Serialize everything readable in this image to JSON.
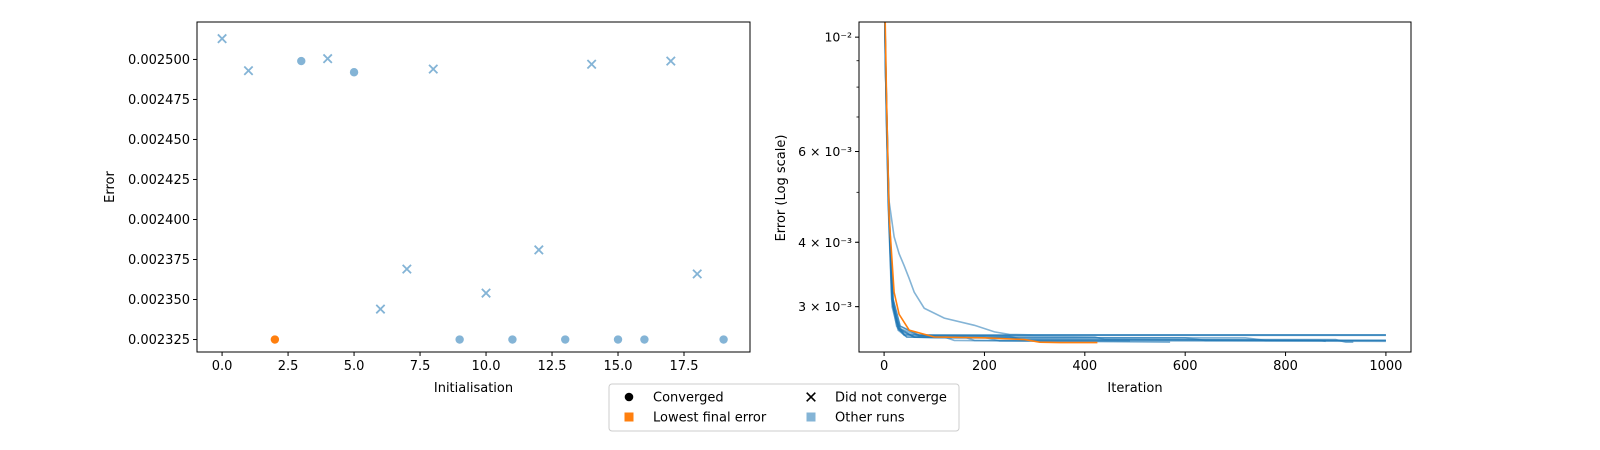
{
  "colors": {
    "highlight": "#ff7f0e",
    "other": "#1f77b4",
    "other_alpha": 0.55,
    "frame": "#000000"
  },
  "chart_data": [
    {
      "type": "scatter",
      "xlabel": "Initialisation",
      "ylabel": "Error",
      "xlim": [
        -0.95,
        20.0
      ],
      "ylim": [
        0.0023172,
        0.0025234
      ],
      "xticks": [
        "0.0",
        "2.5",
        "5.0",
        "7.5",
        "10.0",
        "12.5",
        "15.0",
        "17.5"
      ],
      "yticks": [
        "0.002325",
        "0.002350",
        "0.002375",
        "0.002400",
        "0.002425",
        "0.002450",
        "0.002475",
        "0.002500"
      ],
      "points": [
        {
          "x": 0,
          "y": 0.002513,
          "converged": false,
          "lowest": false
        },
        {
          "x": 1,
          "y": 0.002493,
          "converged": false,
          "lowest": false
        },
        {
          "x": 2,
          "y": 0.002325,
          "converged": true,
          "lowest": true
        },
        {
          "x": 3,
          "y": 0.002499,
          "converged": true,
          "lowest": false
        },
        {
          "x": 4,
          "y": 0.0025005,
          "converged": false,
          "lowest": false
        },
        {
          "x": 5,
          "y": 0.002492,
          "converged": true,
          "lowest": false
        },
        {
          "x": 6,
          "y": 0.002344,
          "converged": false,
          "lowest": false
        },
        {
          "x": 7,
          "y": 0.002369,
          "converged": false,
          "lowest": false
        },
        {
          "x": 8,
          "y": 0.002494,
          "converged": false,
          "lowest": false
        },
        {
          "x": 9,
          "y": 0.002325,
          "converged": true,
          "lowest": false
        },
        {
          "x": 10,
          "y": 0.002354,
          "converged": false,
          "lowest": false
        },
        {
          "x": 11,
          "y": 0.002325,
          "converged": true,
          "lowest": false
        },
        {
          "x": 12,
          "y": 0.002381,
          "converged": false,
          "lowest": false
        },
        {
          "x": 13,
          "y": 0.002325,
          "converged": true,
          "lowest": false
        },
        {
          "x": 14,
          "y": 0.002497,
          "converged": false,
          "lowest": false
        },
        {
          "x": 15,
          "y": 0.002325,
          "converged": true,
          "lowest": false
        },
        {
          "x": 16,
          "y": 0.002325,
          "converged": true,
          "lowest": false
        },
        {
          "x": 17,
          "y": 0.002499,
          "converged": false,
          "lowest": false
        },
        {
          "x": 18,
          "y": 0.002366,
          "converged": false,
          "lowest": false
        },
        {
          "x": 19,
          "y": 0.002325,
          "converged": true,
          "lowest": false
        }
      ]
    },
    {
      "type": "line",
      "xlabel": "Iteration",
      "ylabel": "Error (Log scale)",
      "yscale": "log",
      "xlim": [
        -50,
        1050
      ],
      "ylim": [
        0.00245,
        0.0107
      ],
      "xticks": [
        "0",
        "200",
        "400",
        "600",
        "800",
        "1000"
      ],
      "yticks": [
        {
          "value": 0.003,
          "label": "3 × 10⁻³"
        },
        {
          "value": 0.004,
          "label": "4 × 10⁻³"
        },
        {
          "value": 0.006,
          "label": "6 × 10⁻³"
        },
        {
          "value": 0.01,
          "label": "10⁻²"
        }
      ],
      "series": [
        {
          "highlight": true,
          "points": [
            [
              0,
              0.013
            ],
            [
              2,
              0.011
            ],
            [
              5,
              0.0075
            ],
            [
              10,
              0.0045
            ],
            [
              20,
              0.0032
            ],
            [
              30,
              0.0029
            ],
            [
              50,
              0.0027
            ],
            [
              100,
              0.00262
            ],
            [
              200,
              0.00261
            ],
            [
              280,
              0.00259
            ],
            [
              310,
              0.00256
            ],
            [
              350,
              0.002555
            ],
            [
              425,
              0.002555
            ]
          ]
        },
        {
          "highlight": false,
          "points": [
            [
              0,
              0.013
            ],
            [
              3,
              0.009
            ],
            [
              8,
              0.005
            ],
            [
              15,
              0.0032
            ],
            [
              25,
              0.0028
            ],
            [
              40,
              0.00265
            ],
            [
              100,
              0.002645
            ],
            [
              1000,
              0.002645
            ]
          ]
        },
        {
          "highlight": false,
          "points": [
            [
              0,
              0.013
            ],
            [
              3,
              0.0085
            ],
            [
              8,
              0.0048
            ],
            [
              15,
              0.0031
            ],
            [
              25,
              0.00275
            ],
            [
              40,
              0.00264
            ],
            [
              100,
              0.00264
            ],
            [
              1000,
              0.00264
            ]
          ]
        },
        {
          "highlight": false,
          "points": [
            [
              0,
              0.013
            ],
            [
              3,
              0.0085
            ],
            [
              9,
              0.0047
            ],
            [
              16,
              0.0031
            ],
            [
              28,
              0.00272
            ],
            [
              45,
              0.00262
            ],
            [
              100,
              0.00261
            ],
            [
              720,
              0.00261
            ],
            [
              760,
              0.00258
            ],
            [
              1000,
              0.00258
            ]
          ]
        },
        {
          "highlight": false,
          "points": [
            [
              0,
              0.013
            ],
            [
              3,
              0.0085
            ],
            [
              9,
              0.0046
            ],
            [
              16,
              0.003
            ],
            [
              28,
              0.0027
            ],
            [
              45,
              0.00262
            ],
            [
              150,
              0.00261
            ],
            [
              600,
              0.00261
            ],
            [
              640,
              0.00258
            ],
            [
              1000,
              0.00258
            ]
          ]
        },
        {
          "highlight": false,
          "points": [
            [
              0,
              0.013
            ],
            [
              4,
              0.008
            ],
            [
              10,
              0.0045
            ],
            [
              18,
              0.003
            ],
            [
              30,
              0.00272
            ],
            [
              60,
              0.00262
            ],
            [
              250,
              0.00262
            ],
            [
              270,
              0.00259
            ],
            [
              900,
              0.00259
            ],
            [
              920,
              0.00256
            ],
            [
              935,
              0.00256
            ]
          ]
        },
        {
          "highlight": false,
          "points": [
            [
              0,
              0.013
            ],
            [
              4,
              0.008
            ],
            [
              10,
              0.0044
            ],
            [
              18,
              0.003
            ],
            [
              30,
              0.0027
            ],
            [
              60,
              0.00262
            ],
            [
              160,
              0.00262
            ],
            [
              180,
              0.00258
            ],
            [
              1000,
              0.00257
            ]
          ]
        },
        {
          "highlight": false,
          "points": [
            [
              0,
              0.013
            ],
            [
              4,
              0.0082
            ],
            [
              10,
              0.0046
            ],
            [
              18,
              0.0031
            ],
            [
              32,
              0.00275
            ],
            [
              70,
              0.00264
            ],
            [
              250,
              0.00263
            ],
            [
              275,
              0.00259
            ],
            [
              870,
              0.00258
            ],
            [
              880,
              0.00257
            ]
          ]
        },
        {
          "highlight": false,
          "points": [
            [
              0,
              0.013
            ],
            [
              4,
              0.0082
            ],
            [
              10,
              0.0046
            ],
            [
              18,
              0.0031
            ],
            [
              32,
              0.00275
            ],
            [
              70,
              0.00264
            ],
            [
              420,
              0.00262
            ],
            [
              440,
              0.00259
            ],
            [
              1000,
              0.00258
            ]
          ]
        },
        {
          "highlight": false,
          "points": [
            [
              0,
              0.013
            ],
            [
              4,
              0.008
            ],
            [
              10,
              0.0045
            ],
            [
              18,
              0.003
            ],
            [
              32,
              0.00272
            ],
            [
              70,
              0.00263
            ],
            [
              120,
              0.00262
            ],
            [
              140,
              0.00258
            ],
            [
              570,
              0.00256
            ]
          ]
        },
        {
          "highlight": false,
          "points": [
            [
              0,
              0.013
            ],
            [
              3,
              0.0084
            ],
            [
              9,
              0.0047
            ],
            [
              17,
              0.0031
            ],
            [
              30,
              0.00272
            ],
            [
              60,
              0.00262
            ],
            [
              200,
              0.002615
            ],
            [
              230,
              0.002575
            ],
            [
              490,
              0.002575
            ]
          ]
        },
        {
          "highlight": false,
          "points": [
            [
              0,
              0.013
            ],
            [
              2,
              0.01
            ],
            [
              5,
              0.0065
            ],
            [
              10,
              0.0048
            ],
            [
              20,
              0.0041
            ],
            [
              30,
              0.0038
            ],
            [
              40,
              0.0036
            ],
            [
              50,
              0.0034
            ],
            [
              60,
              0.0032
            ],
            [
              80,
              0.00298
            ],
            [
              120,
              0.00285
            ],
            [
              180,
              0.00276
            ],
            [
              220,
              0.00268
            ],
            [
              250,
              0.00265
            ],
            [
              300,
              0.002645
            ],
            [
              1000,
              0.002645
            ]
          ]
        }
      ]
    }
  ],
  "legend": {
    "entries": [
      {
        "label": "Converged",
        "marker": "dot"
      },
      {
        "label": "Lowest final error",
        "marker": "square-highlight"
      },
      {
        "label": "Did not converge",
        "marker": "cross"
      },
      {
        "label": "Other runs",
        "marker": "square-other"
      }
    ]
  }
}
